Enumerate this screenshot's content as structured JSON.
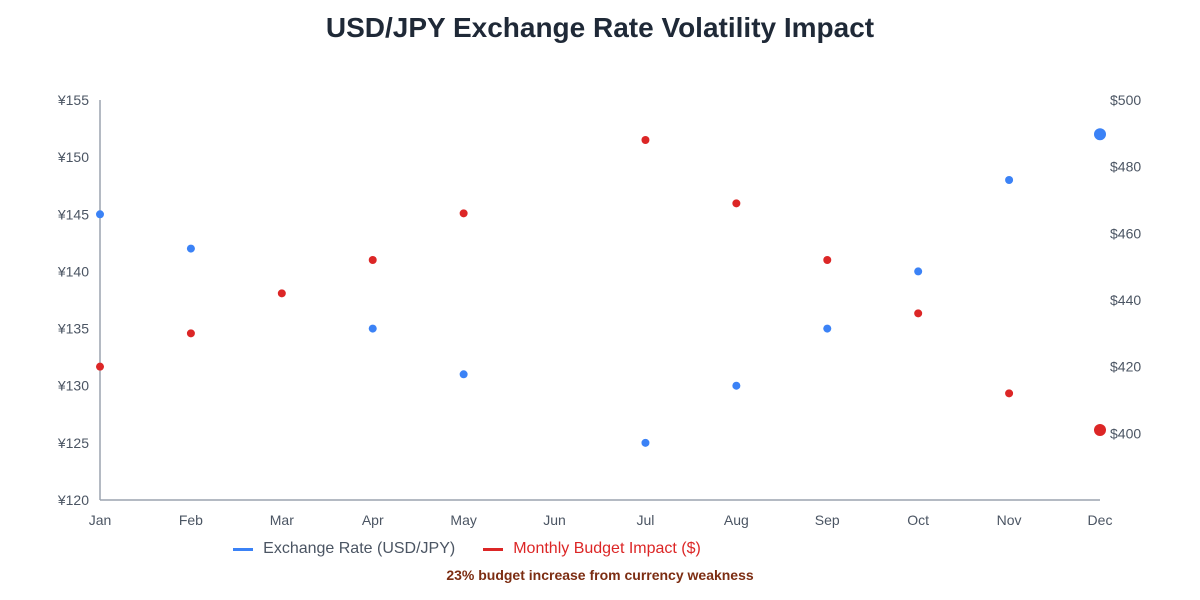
{
  "chart_data": {
    "type": "scatter",
    "title": "USD/JPY Exchange Rate Volatility Impact",
    "categories": [
      "Jan",
      "Feb",
      "Mar",
      "Apr",
      "May",
      "Jun",
      "Jul",
      "Aug",
      "Sep",
      "Oct",
      "Nov",
      "Dec"
    ],
    "left_axis": {
      "ylim": [
        120,
        155
      ],
      "ticks": [
        "¥120",
        "¥125",
        "¥130",
        "¥135",
        "¥140",
        "¥145",
        "¥150",
        "¥155"
      ],
      "tick_values": [
        120,
        125,
        130,
        135,
        140,
        145,
        150,
        155
      ]
    },
    "right_axis": {
      "ylim": [
        380,
        500
      ],
      "ticks": [
        "$400",
        "$420",
        "$440",
        "$460",
        "$480",
        "$500"
      ],
      "tick_values": [
        400,
        420,
        440,
        460,
        480,
        500
      ]
    },
    "series": [
      {
        "name": "Exchange Rate (USD/JPY)",
        "axis": "left",
        "color": "#3b82f6",
        "values": [
          145,
          142,
          null,
          135,
          131,
          null,
          125,
          130,
          135,
          140,
          148,
          152
        ]
      },
      {
        "name": "Monthly Budget Impact ($)",
        "axis": "right",
        "color": "#dc2626",
        "values": [
          420,
          430,
          442,
          452,
          466,
          null,
          488,
          469,
          452,
          436,
          412,
          401
        ]
      }
    ],
    "highlighted_category": "Dec",
    "grid": false,
    "legend_position": "bottom",
    "annotation": "23% budget increase from currency weakness"
  }
}
